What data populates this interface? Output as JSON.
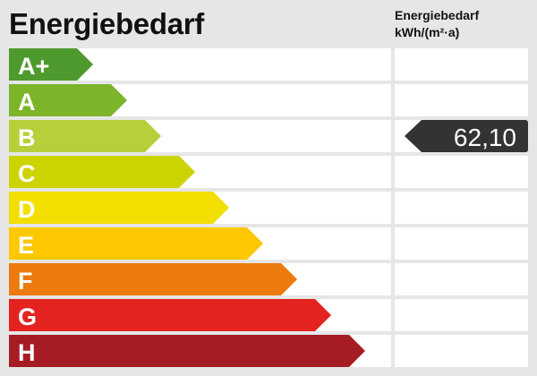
{
  "header": {
    "title": "Energiebedarf",
    "unit_line1": "Energiebedarf",
    "unit_line2": "kWh/(m²·a)"
  },
  "chart_data": {
    "type": "bar",
    "title": "Energiebedarf",
    "ylabel": "Energiebedarf kWh/(m²·a)",
    "categories": [
      "A+",
      "A",
      "B",
      "C",
      "D",
      "E",
      "F",
      "G",
      "H"
    ],
    "colors": [
      "#4f9a2e",
      "#7cb42a",
      "#b7cf3a",
      "#ccd400",
      "#f2df00",
      "#fdc800",
      "#ec7a0c",
      "#e2231f",
      "#a51c24"
    ],
    "marker": {
      "category": "B",
      "value": "62,10",
      "color": "#333333"
    }
  }
}
